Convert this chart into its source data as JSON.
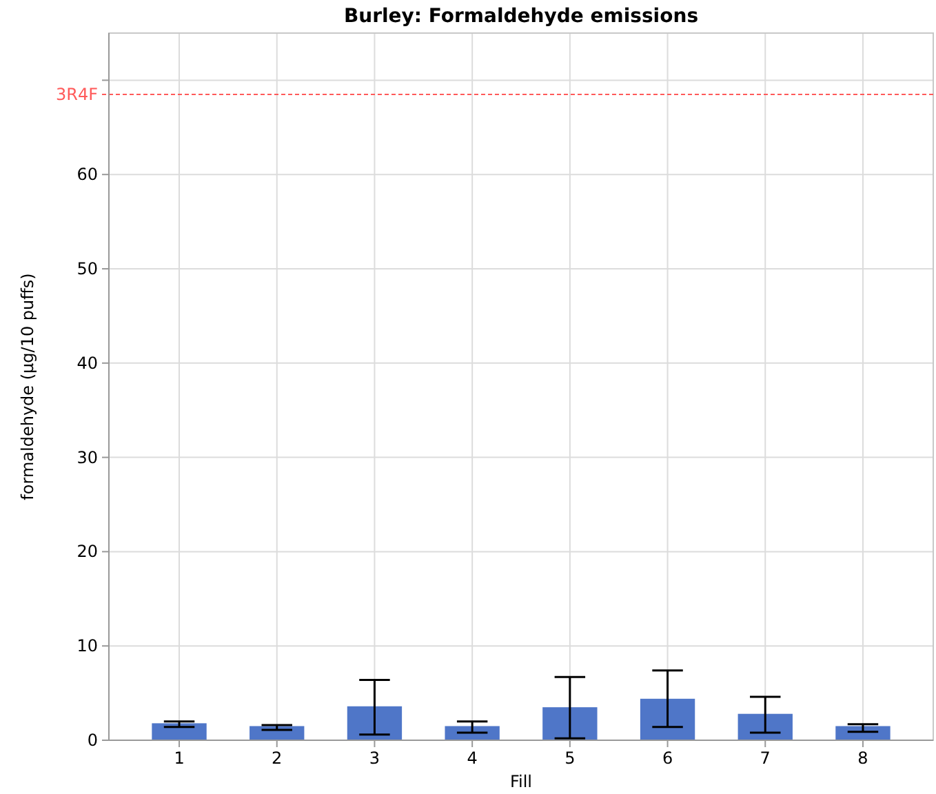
{
  "chart_data": {
    "type": "bar",
    "title": "Burley: Formaldehyde emissions",
    "xlabel": "Fill",
    "ylabel": "formaldehyde (µg/10 puffs)",
    "categories": [
      "1",
      "2",
      "3",
      "4",
      "5",
      "6",
      "7",
      "8"
    ],
    "values": [
      1.8,
      1.5,
      3.6,
      1.5,
      3.5,
      4.4,
      2.8,
      1.5
    ],
    "errors": [
      [
        1.4,
        2.0
      ],
      [
        1.1,
        1.6
      ],
      [
        0.6,
        6.4
      ],
      [
        0.8,
        2.0
      ],
      [
        0.2,
        6.7
      ],
      [
        1.4,
        7.4
      ],
      [
        0.8,
        4.6
      ],
      [
        0.9,
        1.7
      ]
    ],
    "color": "#4f76c8",
    "ylim": [
      0,
      75
    ],
    "yticks": [
      0,
      10,
      20,
      30,
      40,
      50,
      60,
      {
        "value": 70,
        "label": null
      }
    ],
    "ref_lines": [
      {
        "axis": "y",
        "value": 68.5,
        "label": "3R4F",
        "color": "#ff5a5a",
        "line_style": "dashed"
      }
    ],
    "grid": true
  }
}
